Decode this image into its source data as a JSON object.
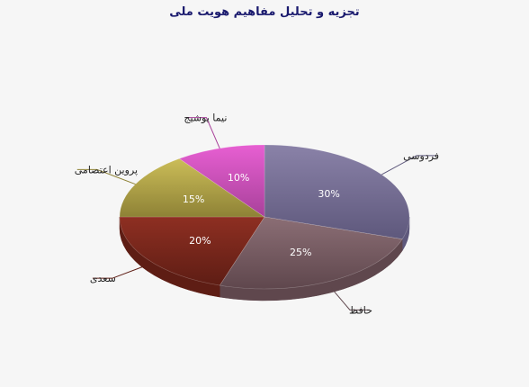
{
  "chart_data": {
    "type": "pie",
    "title": "تجزیه و تحلیل مفاهیم هویت ملی",
    "slices": [
      {
        "name": "فردوسی",
        "value": 30,
        "label": "30%",
        "color": "#8a82a8",
        "edge": "#5e587c"
      },
      {
        "name": "حافظ",
        "value": 25,
        "label": "25%",
        "color": "#8b6e75",
        "edge": "#5f474d"
      },
      {
        "name": "سعدی",
        "value": 20,
        "label": "20%",
        "color": "#8e2f22",
        "edge": "#5e1d14"
      },
      {
        "name": "پروین اعتصامی",
        "value": 15,
        "label": "15%",
        "color": "#cbbd58",
        "edge": "#8e8236"
      },
      {
        "name": "نیما یوشیج",
        "value": 10,
        "label": "10%",
        "color": "#e75fd2",
        "edge": "#a8419a"
      }
    ],
    "legend": "none"
  }
}
